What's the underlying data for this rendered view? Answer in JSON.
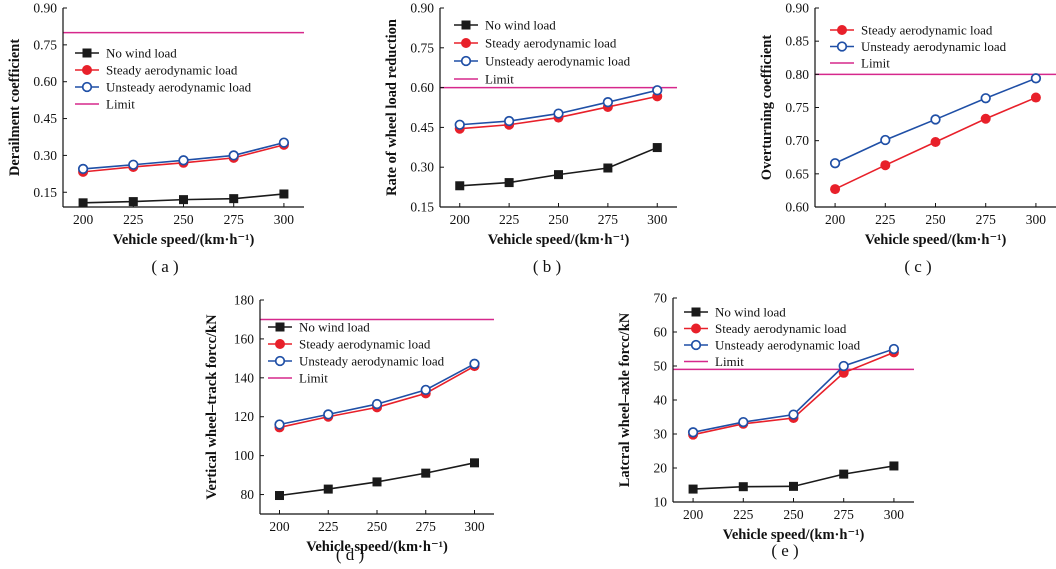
{
  "colors": {
    "no_wind": "#1a1a1a",
    "steady": "#e8202a",
    "unsteady": "#1f4fa6",
    "limit": "#d6288c"
  },
  "chart_data": [
    {
      "id": "a",
      "caption": "( a )",
      "type": "line",
      "xlabel": "Vehicle speed/(km·h⁻¹)",
      "ylabel": "Derailment coefficient",
      "x": [
        200,
        225,
        250,
        275,
        300
      ],
      "xticks": [
        200,
        225,
        250,
        275,
        300
      ],
      "xlim": [
        190,
        310
      ],
      "yticks": [
        "0.15",
        "0.30",
        "0.45",
        "0.60",
        "0.75",
        "0.90"
      ],
      "ylim": [
        0.09,
        0.9
      ],
      "limit": 0.8,
      "legend_position": "upper-left",
      "legend": [
        "No wind load",
        "Steady aerodynamic load",
        "Unsteady aerodynamic load",
        "Limit"
      ],
      "series": [
        {
          "name": "No wind load",
          "key": "no_wind",
          "values": [
            0.107,
            0.112,
            0.12,
            0.124,
            0.143
          ]
        },
        {
          "name": "Steady aerodynamic load",
          "key": "steady",
          "values": [
            0.233,
            0.253,
            0.27,
            0.29,
            0.343
          ]
        },
        {
          "name": "Unsteady aerodynamic load",
          "key": "unsteady",
          "values": [
            0.245,
            0.262,
            0.28,
            0.3,
            0.352
          ]
        }
      ]
    },
    {
      "id": "b",
      "caption": "( b )",
      "type": "line",
      "xlabel": "Vehicle speed/(km·h⁻¹)",
      "ylabel": "Rate of wheel load reduction",
      "x": [
        200,
        225,
        250,
        275,
        300
      ],
      "xticks": [
        200,
        225,
        250,
        275,
        300
      ],
      "xlim": [
        190,
        310
      ],
      "yticks": [
        "0.15",
        "0.30",
        "0.45",
        "0.60",
        "0.75",
        "0.90"
      ],
      "ylim": [
        0.15,
        0.9
      ],
      "limit": 0.6,
      "legend_position": "upper-left",
      "legend": [
        "No wind load",
        "Steady aerodynamic load",
        "Unsteady aerodynamic load",
        "Limit"
      ],
      "series": [
        {
          "name": "No wind load",
          "key": "no_wind",
          "values": [
            0.23,
            0.242,
            0.272,
            0.297,
            0.374
          ]
        },
        {
          "name": "Steady aerodynamic load",
          "key": "steady",
          "values": [
            0.445,
            0.46,
            0.487,
            0.527,
            0.567
          ]
        },
        {
          "name": "Unsteady aerodynamic load",
          "key": "unsteady",
          "values": [
            0.46,
            0.474,
            0.502,
            0.545,
            0.59
          ]
        }
      ]
    },
    {
      "id": "c",
      "caption": "( c )",
      "type": "line",
      "xlabel": "Vehicle speed/(km·h⁻¹)",
      "ylabel": "Overturning coefficient",
      "x": [
        200,
        225,
        250,
        275,
        300
      ],
      "xticks": [
        200,
        225,
        250,
        275,
        300
      ],
      "xlim": [
        190,
        310
      ],
      "yticks": [
        "0.60",
        "0.65",
        "0.70",
        "0.75",
        "0.80",
        "0.85",
        "0.90"
      ],
      "ylim": [
        0.6,
        0.9
      ],
      "limit": 0.8,
      "legend_position": "upper-left",
      "legend": [
        "Steady aerodynamic load",
        "Unsteady aerodynamic load",
        "Limit"
      ],
      "series": [
        {
          "name": "Steady aerodynamic load",
          "key": "steady",
          "values": [
            0.627,
            0.663,
            0.698,
            0.733,
            0.765
          ]
        },
        {
          "name": "Unsteady aerodynamic load",
          "key": "unsteady",
          "values": [
            0.666,
            0.701,
            0.732,
            0.764,
            0.794
          ]
        }
      ]
    },
    {
      "id": "d",
      "caption": "( d )",
      "type": "line",
      "xlabel": "Vehicle speed/(km·h⁻¹)",
      "ylabel": "Vertical wheel–track forcc/kN",
      "x": [
        200,
        225,
        250,
        275,
        300
      ],
      "xticks": [
        200,
        225,
        250,
        275,
        300
      ],
      "xlim": [
        190,
        310
      ],
      "yticks": [
        "80",
        "100",
        "120",
        "140",
        "160",
        "180"
      ],
      "ylim": [
        70,
        180
      ],
      "limit": 170,
      "legend_position": "upper-right",
      "legend": [
        "No wind load",
        "Steady aerodynamic load",
        "Unsteady aerodynamic load",
        "Limit"
      ],
      "series": [
        {
          "name": "No wind load",
          "key": "no_wind",
          "values": [
            79.5,
            82.8,
            86.5,
            91.0,
            96.3
          ]
        },
        {
          "name": "Steady aerodynamic load",
          "key": "steady",
          "values": [
            114.5,
            120.0,
            124.8,
            132.0,
            146.0
          ]
        },
        {
          "name": "Unsteady aerodynamic load",
          "key": "unsteady",
          "values": [
            116.0,
            121.2,
            126.5,
            133.8,
            147.2
          ]
        }
      ]
    },
    {
      "id": "e",
      "caption": "( e )",
      "type": "line",
      "xlabel": "Vehicle speed/(km·h⁻¹)",
      "ylabel": "Latcral wheel–axle forcc/kN",
      "x": [
        200,
        225,
        250,
        275,
        300
      ],
      "xticks": [
        200,
        225,
        250,
        275,
        300
      ],
      "xlim": [
        190,
        310
      ],
      "yticks": [
        "10",
        "20",
        "30",
        "40",
        "50",
        "60",
        "70"
      ],
      "ylim": [
        10,
        70
      ],
      "limit": 49,
      "legend_position": "upper-left",
      "legend": [
        "No wind load",
        "Steady aerodynamic load",
        "Unsteady aerodynamic load",
        "Limit"
      ],
      "series": [
        {
          "name": "No wind load",
          "key": "no_wind",
          "values": [
            13.8,
            14.5,
            14.6,
            18.2,
            20.6
          ]
        },
        {
          "name": "Steady aerodynamic load",
          "key": "steady",
          "values": [
            29.8,
            33.0,
            34.7,
            48.0,
            54.0
          ]
        },
        {
          "name": "Unsteady aerodynamic load",
          "key": "unsteady",
          "values": [
            30.5,
            33.5,
            35.7,
            50.0,
            55.0
          ]
        }
      ]
    }
  ]
}
